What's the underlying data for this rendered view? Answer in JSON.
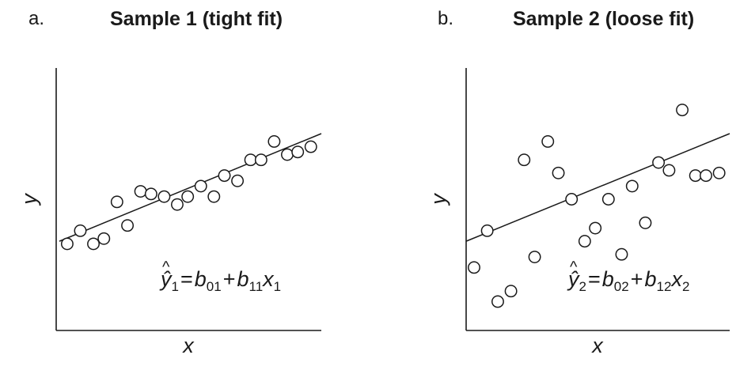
{
  "chart_data": [
    {
      "type": "scatter",
      "panel_letter": "a.",
      "title": "Sample 1 (tight fit)",
      "xlabel": "x",
      "ylabel": "y",
      "equation": {
        "lhs": "ŷ",
        "lhs_sub": "1",
        "b0": "b",
        "b0_sub": "01",
        "plus": "+",
        "b1": "b",
        "b1_sub": "11",
        "x": "x",
        "x_sub": "1"
      },
      "xlim": [
        0,
        10
      ],
      "ylim": [
        0,
        10
      ],
      "grid": false,
      "points": [
        {
          "x": 0.3,
          "y": 3.3
        },
        {
          "x": 0.8,
          "y": 3.8
        },
        {
          "x": 1.3,
          "y": 3.3
        },
        {
          "x": 1.7,
          "y": 3.5
        },
        {
          "x": 2.2,
          "y": 4.9
        },
        {
          "x": 2.6,
          "y": 4.0
        },
        {
          "x": 3.1,
          "y": 5.3
        },
        {
          "x": 3.5,
          "y": 5.2
        },
        {
          "x": 4.0,
          "y": 5.1
        },
        {
          "x": 4.5,
          "y": 4.8
        },
        {
          "x": 4.9,
          "y": 5.1
        },
        {
          "x": 5.4,
          "y": 5.5
        },
        {
          "x": 5.9,
          "y": 5.1
        },
        {
          "x": 6.3,
          "y": 5.9
        },
        {
          "x": 6.8,
          "y": 5.7
        },
        {
          "x": 7.3,
          "y": 6.5
        },
        {
          "x": 7.7,
          "y": 6.5
        },
        {
          "x": 8.2,
          "y": 7.2
        },
        {
          "x": 8.7,
          "y": 6.7
        },
        {
          "x": 9.1,
          "y": 6.8
        },
        {
          "x": 9.6,
          "y": 7.0
        }
      ],
      "fit_line": {
        "x": [
          0,
          10
        ],
        "y": [
          3.4,
          7.5
        ]
      }
    },
    {
      "type": "scatter",
      "panel_letter": "b.",
      "title": "Sample 2 (loose fit)",
      "xlabel": "x",
      "ylabel": "y",
      "equation": {
        "lhs": "ŷ",
        "lhs_sub": "2",
        "b0": "b",
        "b0_sub": "02",
        "plus": "+",
        "b1": "b",
        "b1_sub": "12",
        "x": "x",
        "x_sub": "2"
      },
      "xlim": [
        0,
        10
      ],
      "ylim": [
        0,
        10
      ],
      "grid": false,
      "points": [
        {
          "x": 0.3,
          "y": 2.4
        },
        {
          "x": 0.8,
          "y": 3.8
        },
        {
          "x": 1.2,
          "y": 1.1
        },
        {
          "x": 1.7,
          "y": 1.5
        },
        {
          "x": 2.2,
          "y": 6.5
        },
        {
          "x": 2.6,
          "y": 2.8
        },
        {
          "x": 3.1,
          "y": 7.2
        },
        {
          "x": 3.5,
          "y": 6.0
        },
        {
          "x": 4.0,
          "y": 5.0
        },
        {
          "x": 4.5,
          "y": 3.4
        },
        {
          "x": 4.9,
          "y": 3.9
        },
        {
          "x": 5.4,
          "y": 5.0
        },
        {
          "x": 5.9,
          "y": 2.9
        },
        {
          "x": 6.3,
          "y": 5.5
        },
        {
          "x": 6.8,
          "y": 4.1
        },
        {
          "x": 7.3,
          "y": 6.4
        },
        {
          "x": 7.7,
          "y": 6.1
        },
        {
          "x": 8.2,
          "y": 8.4
        },
        {
          "x": 8.7,
          "y": 5.9
        },
        {
          "x": 9.1,
          "y": 5.9
        },
        {
          "x": 9.6,
          "y": 6.0
        }
      ],
      "fit_line": {
        "x": [
          0,
          10
        ],
        "y": [
          3.4,
          7.5
        ]
      }
    }
  ]
}
